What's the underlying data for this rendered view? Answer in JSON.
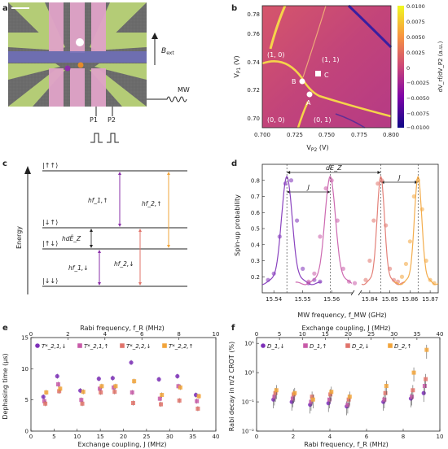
{
  "panel_labels": {
    "a": "a",
    "b": "b",
    "c": "c",
    "d": "d",
    "e": "e",
    "f": "f"
  },
  "panel_a": {
    "bext": "B",
    "bext_sub": "ext",
    "mw": "MW",
    "p1": "P1",
    "p2": "P2"
  },
  "panel_b": {
    "xlabel": "V",
    "xlabel_sub": "P2",
    "xlabel_unit": " (V)",
    "ylabel": "V",
    "ylabel_sub": "P1",
    "ylabel_unit": " (V)",
    "cbar_label": "dV_rf/dV_P2 (a.u.)",
    "x_ticks": [
      "0.700",
      "0.725",
      "0.750",
      "0.775",
      "0.800"
    ],
    "y_ticks": [
      "0.70",
      "0.72",
      "0.74",
      "0.76",
      "0.78"
    ],
    "cbar_ticks": [
      "0.0100",
      "0.0075",
      "0.0050",
      "0.0025",
      "0",
      "−0.0025",
      "−0.0050",
      "−0.0075",
      "−0.0100"
    ],
    "regions": [
      "(1, 0)",
      "(1, 1)",
      "(0, 0)",
      "(0, 1)"
    ],
    "points": [
      "A",
      "B",
      "C"
    ]
  },
  "panel_c": {
    "levels": [
      "|↑↑⟩",
      "|↓↑⟩",
      "|↑↓⟩",
      "|↓↓⟩"
    ],
    "ylabel": "Energy",
    "transitions": [
      "hf_1,↑",
      "hf_2,↑",
      "hf_1,↓",
      "hf_2,↓"
    ],
    "hdEz": "hdẼ_Z"
  },
  "panel_d": {
    "ylabel": "Spin-up probability",
    "xlabel": "MW frequency, f_MW (GHz)",
    "x_ticks_left": [
      "15.54",
      "15.55",
      "15.56"
    ],
    "x_ticks_right": [
      "15.84",
      "15.85",
      "15.86",
      "15.87"
    ],
    "y_ticks": [
      "0.2",
      "0.3",
      "0.4",
      "0.5",
      "0.6",
      "0.7",
      "0.8"
    ],
    "J": "J",
    "dEz": "dẼ_Z",
    "colors": {
      "purple": "#7d2fb8",
      "pink": "#c85aa8",
      "salmon": "#e0736a",
      "orange": "#f2a43a"
    }
  },
  "panel_e": {
    "top_xlabel": "Rabi frequency, f_R (MHz)",
    "bottom_xlabel": "Exchange coupling, J (MHz)",
    "ylabel": "Dephasing time (μs)",
    "top_ticks": [
      "0",
      "2",
      "4",
      "6",
      "8",
      "10"
    ],
    "bottom_ticks": [
      "0",
      "5",
      "10",
      "15",
      "20",
      "25",
      "30",
      "35",
      "40"
    ],
    "y_ticks": [
      "0",
      "5",
      "10",
      "15"
    ],
    "legend": [
      "T*_2,1,↓",
      "T*_2,1,↑",
      "T*_2,2,↓",
      "T*_2,2,↑"
    ]
  },
  "panel_f": {
    "top_xlabel": "Exchange coupling, J (MHz)",
    "bottom_xlabel": "Rabi frequency, f_R (MHz)",
    "ylabel": "Rabi decay in π/2 CROT (%)",
    "top_ticks": [
      "0",
      "5",
      "10",
      "15",
      "20",
      "25",
      "30",
      "35",
      "40"
    ],
    "bottom_ticks": [
      "0",
      "2",
      "4",
      "6",
      "8",
      "10"
    ],
    "y_ticks": [
      "10⁻²",
      "10⁻¹",
      "10⁰",
      "10¹"
    ],
    "legend": [
      "D_1,↓",
      "D_1,↑",
      "D_2,↓",
      "D_2,↑"
    ]
  },
  "chart_data": [
    {
      "type": "scatter",
      "title": "",
      "xlabel": "MW frequency, f_MW (GHz)",
      "ylabel": "Spin-up probability",
      "ylim": [
        0.1,
        0.9
      ],
      "series": [
        {
          "name": "",
          "color": "#7d2fb8",
          "x": [
            15.538,
            15.54,
            15.542,
            15.544,
            15.546,
            15.548,
            15.55,
            15.552,
            15.554,
            15.556
          ],
          "y": [
            0.18,
            0.22,
            0.45,
            0.78,
            0.8,
            0.55,
            0.25,
            0.16,
            0.18,
            0.17
          ]
        },
        {
          "name": "",
          "color": "#c85aa8",
          "x": [
            15.552,
            15.554,
            15.556,
            15.558,
            15.56,
            15.562,
            15.564,
            15.566,
            15.568
          ],
          "y": [
            0.17,
            0.22,
            0.45,
            0.75,
            0.8,
            0.55,
            0.25,
            0.17,
            0.16
          ]
        },
        {
          "name": "",
          "color": "#e0736a",
          "x": [
            15.838,
            15.84,
            15.842,
            15.844,
            15.846,
            15.848,
            15.85,
            15.852,
            15.854
          ],
          "y": [
            0.18,
            0.3,
            0.55,
            0.78,
            0.8,
            0.52,
            0.25,
            0.18,
            0.17
          ]
        },
        {
          "name": "",
          "color": "#f2a43a",
          "x": [
            15.856,
            15.858,
            15.86,
            15.862,
            15.864,
            15.866,
            15.868,
            15.87,
            15.872
          ],
          "y": [
            0.2,
            0.28,
            0.42,
            0.7,
            0.8,
            0.62,
            0.3,
            0.18,
            0.16
          ]
        }
      ]
    },
    {
      "type": "scatter",
      "xlabel": "Exchange coupling, J (MHz)",
      "ylabel": "Dephasing time (μs)",
      "ylim": [
        0,
        15
      ],
      "x": [
        3,
        6,
        11,
        15,
        18,
        22,
        28,
        32,
        36
      ],
      "series": [
        {
          "name": "T*_2,1,↓",
          "color": "#7d2fb8",
          "values": [
            5.5,
            8.8,
            6.5,
            8.4,
            8.5,
            11.0,
            8.3,
            8.8,
            5.8
          ]
        },
        {
          "name": "T*_2,1,↑",
          "color": "#c85aa8",
          "values": [
            4.8,
            7.5,
            5.0,
            6.8,
            7.0,
            6.2,
            5.2,
            7.2,
            4.8
          ]
        },
        {
          "name": "T*_2,2,↓",
          "color": "#e0736a",
          "values": [
            4.4,
            6.4,
            4.4,
            6.2,
            6.3,
            4.5,
            4.3,
            4.9,
            3.6
          ]
        },
        {
          "name": "T*_2,2,↑",
          "color": "#f2a43a",
          "values": [
            6.2,
            6.8,
            6.3,
            7.2,
            7.2,
            8.0,
            5.8,
            7.0,
            5.6
          ]
        }
      ]
    },
    {
      "type": "scatter",
      "xlabel": "Rabi frequency, f_R (MHz)",
      "ylabel": "Rabi decay in π/2 CROT (%)",
      "ylim": [
        0.01,
        10
      ],
      "x": [
        1,
        2,
        3,
        4,
        5,
        7,
        8.5,
        9.2
      ],
      "series": [
        {
          "name": "D_1,↓",
          "color": "#7d2fb8",
          "values": [
            0.12,
            0.1,
            0.08,
            0.09,
            0.07,
            0.1,
            0.13,
            0.2
          ]
        },
        {
          "name": "D_1,↑",
          "color": "#c85aa8",
          "values": [
            0.15,
            0.13,
            0.1,
            0.12,
            0.08,
            0.12,
            0.15,
            0.35
          ]
        },
        {
          "name": "D_2,↓",
          "color": "#e0736a",
          "values": [
            0.2,
            0.18,
            0.15,
            0.18,
            0.12,
            0.2,
            0.25,
            0.6
          ]
        },
        {
          "name": "D_2,↑",
          "color": "#f2a43a",
          "values": [
            0.25,
            0.2,
            0.12,
            0.22,
            0.15,
            0.35,
            1.0,
            6.0
          ]
        }
      ]
    }
  ]
}
